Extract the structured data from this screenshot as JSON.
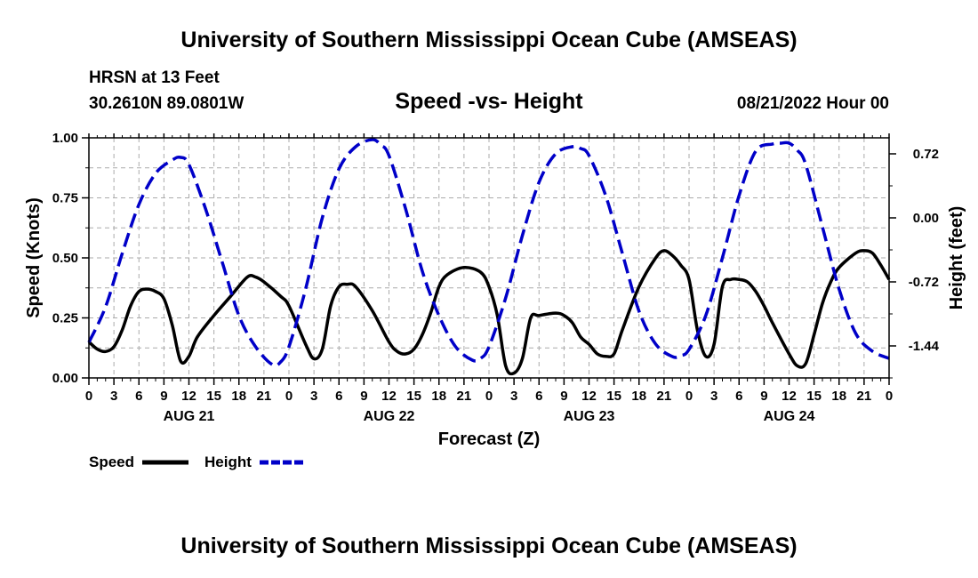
{
  "header": {
    "main_title": "University of Southern Mississippi Ocean Cube (AMSEAS)",
    "station": "HRSN at 13 Feet",
    "coordinates": "30.2610N  89.0801W",
    "subtitle": "Speed -vs- Height",
    "datetime": "08/21/2022 Hour 00",
    "bottom_title": "University of Southern Mississippi Ocean Cube (AMSEAS)"
  },
  "chart_data": {
    "type": "line",
    "title": "Speed -vs- Height",
    "xlabel": "Forecast (Z)",
    "ylabel": "Speed (Knots)",
    "y2label": "Height (feet)",
    "xlim": [
      0,
      96
    ],
    "ylim": [
      0,
      1
    ],
    "y2lim": [
      -1.8,
      0.9
    ],
    "grid": true,
    "x_tick_labels": [
      "0",
      "3",
      "6",
      "9",
      "12",
      "15",
      "18",
      "21",
      "0",
      "3",
      "6",
      "9",
      "12",
      "15",
      "18",
      "21",
      "0",
      "3",
      "6",
      "9",
      "12",
      "15",
      "18",
      "21",
      "0",
      "3",
      "6",
      "9",
      "12",
      "15",
      "18",
      "21",
      "0"
    ],
    "date_labels": [
      {
        "label": "AUG 21",
        "hour": 12
      },
      {
        "label": "AUG 22",
        "hour": 36
      },
      {
        "label": "AUG 23",
        "hour": 60
      },
      {
        "label": "AUG 24",
        "hour": 84
      }
    ],
    "y_tick_labels": [
      "0.00",
      "0.25",
      "0.50",
      "0.75",
      "1.00"
    ],
    "y_ticks": [
      0,
      0.25,
      0.5,
      0.75,
      1.0
    ],
    "y2_tick_labels": [
      "-1.44",
      "-0.72",
      "0.00",
      "0.72"
    ],
    "y2_ticks": [
      -1.44,
      -0.72,
      0.0,
      0.72
    ],
    "series": [
      {
        "name": "Speed",
        "axis": "left",
        "color": "#000000",
        "style": "solid",
        "x": [
          0,
          1,
          2,
          3,
          4,
          5,
          6,
          7,
          8,
          9,
          10,
          11,
          12,
          13,
          15,
          17,
          19,
          20,
          21,
          23,
          24,
          26,
          27,
          28,
          29,
          30,
          31,
          32,
          34,
          36,
          37,
          38,
          39,
          40,
          41,
          42,
          43,
          45,
          47,
          48,
          49,
          50,
          51,
          52,
          53,
          54,
          56,
          57,
          58,
          59,
          60,
          61,
          62,
          63,
          64,
          66,
          68,
          69,
          70,
          71,
          72,
          73,
          74,
          75,
          76,
          77,
          78,
          79,
          80,
          81,
          82,
          84,
          85,
          86,
          87,
          88,
          89,
          90,
          92,
          93,
          94,
          95,
          96
        ],
        "values": [
          0.15,
          0.12,
          0.11,
          0.13,
          0.2,
          0.3,
          0.36,
          0.37,
          0.36,
          0.33,
          0.22,
          0.07,
          0.09,
          0.17,
          0.26,
          0.34,
          0.42,
          0.42,
          0.4,
          0.34,
          0.3,
          0.14,
          0.08,
          0.12,
          0.3,
          0.38,
          0.39,
          0.38,
          0.28,
          0.15,
          0.11,
          0.1,
          0.12,
          0.18,
          0.27,
          0.38,
          0.43,
          0.46,
          0.44,
          0.38,
          0.26,
          0.05,
          0.02,
          0.08,
          0.25,
          0.26,
          0.27,
          0.26,
          0.23,
          0.17,
          0.14,
          0.1,
          0.09,
          0.1,
          0.2,
          0.38,
          0.5,
          0.53,
          0.51,
          0.47,
          0.41,
          0.2,
          0.09,
          0.14,
          0.38,
          0.41,
          0.41,
          0.4,
          0.36,
          0.3,
          0.23,
          0.1,
          0.05,
          0.06,
          0.18,
          0.31,
          0.4,
          0.46,
          0.52,
          0.53,
          0.52,
          0.47,
          0.41
        ]
      },
      {
        "name": "Height",
        "axis": "right",
        "color": "#0000c8",
        "style": "dashed",
        "x": [
          0,
          2,
          4,
          6,
          8,
          10,
          11,
          12,
          14,
          16,
          18,
          20,
          22,
          23,
          24,
          26,
          28,
          30,
          32,
          34,
          35,
          36,
          38,
          40,
          42,
          44,
          46,
          47,
          48,
          50,
          52,
          54,
          56,
          58,
          59,
          60,
          62,
          64,
          66,
          68,
          70,
          71,
          72,
          74,
          76,
          78,
          80,
          82,
          83,
          84,
          85,
          86,
          88,
          90,
          92,
          94,
          96
        ],
        "values": [
          -1.4,
          -1.0,
          -0.4,
          0.15,
          0.5,
          0.65,
          0.68,
          0.6,
          0.1,
          -0.5,
          -1.1,
          -1.45,
          -1.65,
          -1.62,
          -1.45,
          -0.8,
          0.0,
          0.55,
          0.8,
          0.88,
          0.82,
          0.7,
          0.1,
          -0.6,
          -1.1,
          -1.45,
          -1.6,
          -1.58,
          -1.45,
          -0.9,
          -0.2,
          0.4,
          0.72,
          0.8,
          0.78,
          0.7,
          0.25,
          -0.4,
          -1.05,
          -1.42,
          -1.56,
          -1.55,
          -1.48,
          -1.1,
          -0.45,
          0.25,
          0.75,
          0.83,
          0.84,
          0.84,
          0.76,
          0.6,
          -0.1,
          -0.8,
          -1.3,
          -1.5,
          -1.58
        ]
      }
    ],
    "legend": {
      "placement": "bottom-left",
      "entries": [
        {
          "label": "Speed",
          "color": "#000000",
          "style": "solid"
        },
        {
          "label": "Height",
          "color": "#0000c8",
          "style": "dashed"
        }
      ]
    }
  }
}
